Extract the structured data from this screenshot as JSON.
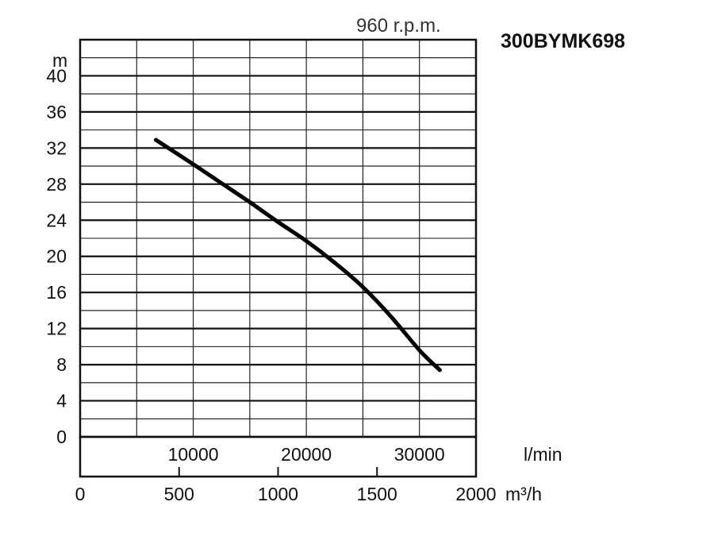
{
  "chart_data": {
    "type": "line",
    "model": "300BYMK698",
    "speed_label": "960 r.p.m.",
    "ylabel": "m",
    "y_ticks": [
      "0",
      "4",
      "8",
      "12",
      "16",
      "20",
      "24",
      "28",
      "32",
      "36",
      "40"
    ],
    "ylim": [
      0,
      44
    ],
    "x_primary": {
      "unit": "l/min",
      "ticks": [
        "10000",
        "20000",
        "30000"
      ],
      "range": [
        0,
        35000
      ]
    },
    "x_secondary": {
      "unit": "m³/h",
      "ticks": [
        "0",
        "500",
        "1000",
        "1500",
        "2000"
      ],
      "range": [
        0,
        2000
      ]
    },
    "series": [
      {
        "x_lmin": [
          6700,
          10000,
          12500,
          15000,
          17500,
          20000,
          22500,
          25000,
          27500,
          30000,
          31800
        ],
        "y": [
          32.9,
          30.2,
          28.1,
          26.0,
          23.8,
          21.7,
          19.3,
          16.6,
          13.3,
          9.6,
          7.4
        ]
      }
    ],
    "grid": true
  }
}
